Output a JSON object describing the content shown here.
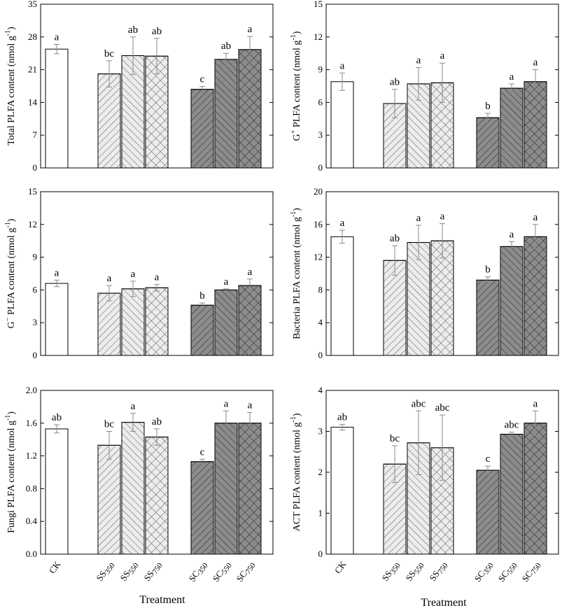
{
  "colors": {
    "ck": "#ffffff",
    "ss": "#ececec",
    "sc": "#8c8c8c",
    "axis": "#000000",
    "error_bar": "#8a8a8a"
  },
  "chart_data": [
    {
      "type": "bar",
      "panel": "total",
      "title": "",
      "xlabel": "Treatment",
      "ylabel": "Total PLFA content (nmol g⁻¹)",
      "ylabel_main": "Total PLFA content",
      "ylabel_unit": "(nmol g",
      "ylabel_sup": "-1",
      "ylabel_close": ")",
      "ylim": [
        0,
        35
      ],
      "yticks": [
        "0",
        "7",
        "14",
        "21",
        "28",
        "35"
      ],
      "categories": [
        "CK",
        "SS350",
        "SS550",
        "SS750",
        "SC350",
        "SC550",
        "SC750"
      ],
      "values": [
        25.4,
        20.1,
        24.0,
        23.9,
        16.8,
        23.2,
        25.3
      ],
      "errors": [
        1.0,
        2.8,
        4.0,
        3.8,
        0.6,
        1.3,
        2.8
      ],
      "labels": [
        "a",
        "bc",
        "ab",
        "ab",
        "c",
        "ab",
        "a"
      ]
    },
    {
      "type": "bar",
      "panel": "gplus",
      "title": "",
      "xlabel": "Treatment",
      "ylabel": "G⁺ PLFA content (nmol g⁻¹)",
      "ylabel_main": "G",
      "ylabel_main_sup": "+",
      "ylabel_main_rest": " PLFA content ",
      "ylabel_unit": "(nmol g",
      "ylabel_sup": "-1",
      "ylabel_close": ")",
      "ylim": [
        0,
        15
      ],
      "yticks": [
        "0",
        "3",
        "6",
        "9",
        "12",
        "15"
      ],
      "categories": [
        "CK",
        "SS350",
        "SS550",
        "SS750",
        "SC350",
        "SC550",
        "SC750"
      ],
      "values": [
        7.9,
        5.9,
        7.7,
        7.8,
        4.6,
        7.3,
        7.9
      ],
      "errors": [
        0.8,
        1.3,
        1.5,
        1.8,
        0.4,
        0.4,
        1.1
      ],
      "labels": [
        "a",
        "ab",
        "a",
        "a",
        "b",
        "a",
        "a"
      ]
    },
    {
      "type": "bar",
      "panel": "gminus",
      "title": "",
      "xlabel": "Treatment",
      "ylabel": "G⁻ PLFA content (nmol g⁻¹)",
      "ylabel_main": "G",
      "ylabel_main_sup": "−",
      "ylabel_main_rest": "  PLFA content ",
      "ylabel_unit": "(nmol g",
      "ylabel_sup": "-1",
      "ylabel_close": ")",
      "ylim": [
        0,
        15
      ],
      "yticks": [
        "0",
        "3",
        "6",
        "9",
        "12",
        "15"
      ],
      "categories": [
        "CK",
        "SS350",
        "SS550",
        "SS750",
        "SC350",
        "SC550",
        "SC750"
      ],
      "values": [
        6.6,
        5.7,
        6.1,
        6.2,
        4.6,
        6.0,
        6.4
      ],
      "errors": [
        0.3,
        0.7,
        0.7,
        0.3,
        0.2,
        0.1,
        0.6
      ],
      "labels": [
        "a",
        "a",
        "a",
        "a",
        "b",
        "a",
        "a"
      ]
    },
    {
      "type": "bar",
      "panel": "bacteria",
      "title": "",
      "xlabel": "Treatment",
      "ylabel": "Bacteria PLFA content (nmol g⁻¹)",
      "ylabel_main": "Bacteria PLFA content",
      "ylabel_unit": "(nmol g",
      "ylabel_sup": "-1",
      "ylabel_close": ")",
      "ylim": [
        0,
        20
      ],
      "yticks": [
        "0",
        "4",
        "8",
        "12",
        "16",
        "20"
      ],
      "categories": [
        "CK",
        "SS350",
        "SS550",
        "SS750",
        "SC350",
        "SC550",
        "SC750"
      ],
      "values": [
        14.5,
        11.6,
        13.8,
        14.0,
        9.2,
        13.3,
        14.5
      ],
      "errors": [
        0.8,
        1.8,
        2.1,
        2.1,
        0.4,
        0.6,
        1.5
      ],
      "labels": [
        "a",
        "ab",
        "a",
        "a",
        "b",
        "a",
        "a"
      ]
    },
    {
      "type": "bar",
      "panel": "fungi",
      "title": "",
      "xlabel": "Treatment",
      "ylabel": "Fungi PLFA content (nmol g⁻¹)",
      "ylabel_main": "Fungi PLFA content",
      "ylabel_unit": "(nmol g",
      "ylabel_sup": "-1",
      "ylabel_close": ")",
      "ylim": [
        0,
        2.0
      ],
      "yticks": [
        "0.0",
        "0.4",
        "0.8",
        "1.2",
        "1.6",
        "2.0"
      ],
      "categories": [
        "CK",
        "SS350",
        "SS550",
        "SS750",
        "SC350",
        "SC550",
        "SC750"
      ],
      "values": [
        1.53,
        1.33,
        1.61,
        1.43,
        1.13,
        1.6,
        1.6
      ],
      "errors": [
        0.05,
        0.17,
        0.11,
        0.1,
        0.03,
        0.15,
        0.13
      ],
      "labels": [
        "ab",
        "bc",
        "a",
        "ab",
        "c",
        "a",
        "a"
      ]
    },
    {
      "type": "bar",
      "panel": "act",
      "title": "",
      "xlabel": "Treatment",
      "ylabel": "ACT PLFA content (nmol g⁻¹)",
      "ylabel_main": "ACT PLFA content",
      "ylabel_unit": "(nmol g",
      "ylabel_sup": "-1",
      "ylabel_close": ")",
      "ylim": [
        0,
        4
      ],
      "yticks": [
        "0",
        "1",
        "2",
        "3",
        "4"
      ],
      "categories": [
        "CK",
        "SS350",
        "SS550",
        "SS750",
        "SC350",
        "SC550",
        "SC750"
      ],
      "values": [
        3.1,
        2.2,
        2.72,
        2.6,
        2.05,
        2.93,
        3.2
      ],
      "errors": [
        0.07,
        0.45,
        0.78,
        0.8,
        0.1,
        0.05,
        0.3
      ],
      "labels": [
        "ab",
        "bc",
        "abc",
        "abc",
        "c",
        "abc",
        "a"
      ]
    }
  ],
  "x_categories": [
    {
      "base": "CK",
      "sub": ""
    },
    {
      "base": "SS",
      "sub": "350"
    },
    {
      "base": "SS",
      "sub": "550"
    },
    {
      "base": "SS",
      "sub": "750"
    },
    {
      "base": "SC",
      "sub": "350"
    },
    {
      "base": "SC",
      "sub": "550"
    },
    {
      "base": "SC",
      "sub": "750"
    }
  ]
}
